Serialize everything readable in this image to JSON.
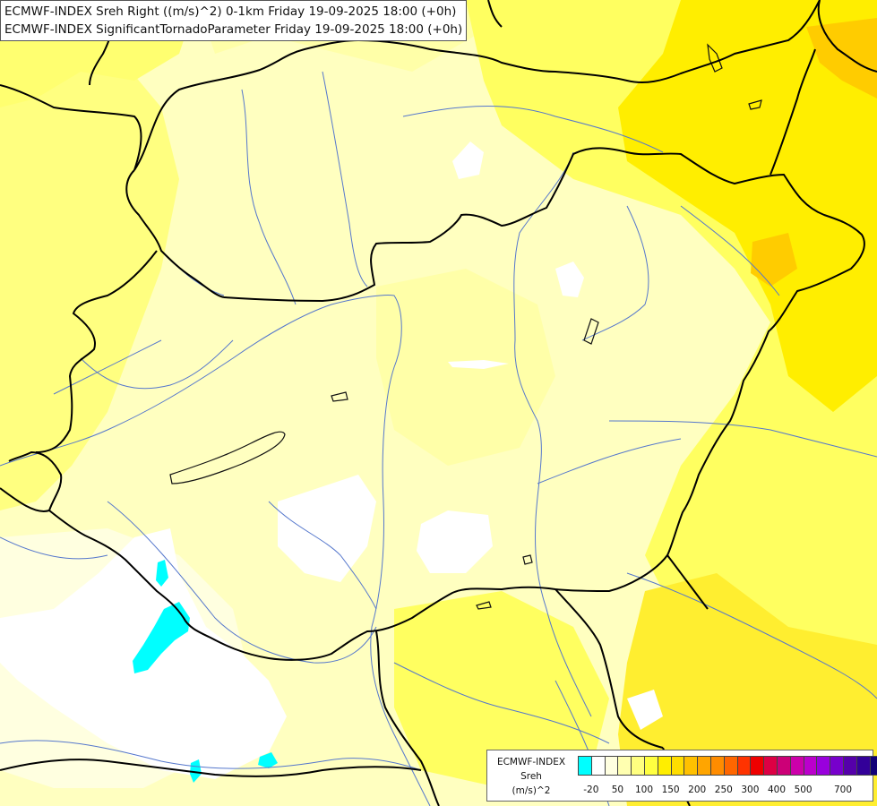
{
  "title": {
    "line1": "ECMWF-INDEX Sreh Right ((m/s)^2) 0-1km Friday 19-09-2025 18:00 (+0h)",
    "line2": "ECMWF-INDEX SignificantTornadoParameter Friday 19-09-2025 18:00 (+0h)"
  },
  "legend": {
    "line1": "ECMWF-INDEX",
    "line2": "Sreh",
    "line3": "(m/s)^2",
    "colors": [
      "#00ffff",
      "#ffffff",
      "#ffffe0",
      "#ffffb0",
      "#ffff80",
      "#ffff40",
      "#ffee00",
      "#ffdd00",
      "#ffc000",
      "#ffa500",
      "#ff8c00",
      "#ff6600",
      "#ff3300",
      "#ee0000",
      "#dd0044",
      "#cc0077",
      "#cc00aa",
      "#bb00cc",
      "#9900dd",
      "#7700cc",
      "#5500aa",
      "#330099",
      "#110077"
    ],
    "ticks": [
      "-20",
      "50",
      "100",
      "150",
      "200",
      "250",
      "300",
      "400",
      "500",
      "700"
    ],
    "tick_index": [
      1,
      3,
      5,
      7,
      9,
      11,
      13,
      15,
      17,
      20
    ]
  },
  "field_colors": {
    "base": "#ffffc0",
    "light": "#ffffa8",
    "mid": "#ffff60",
    "strong": "#ffee00",
    "peak": "#ffcc00",
    "white": "#ffffff",
    "cyan": "#00ffff"
  }
}
